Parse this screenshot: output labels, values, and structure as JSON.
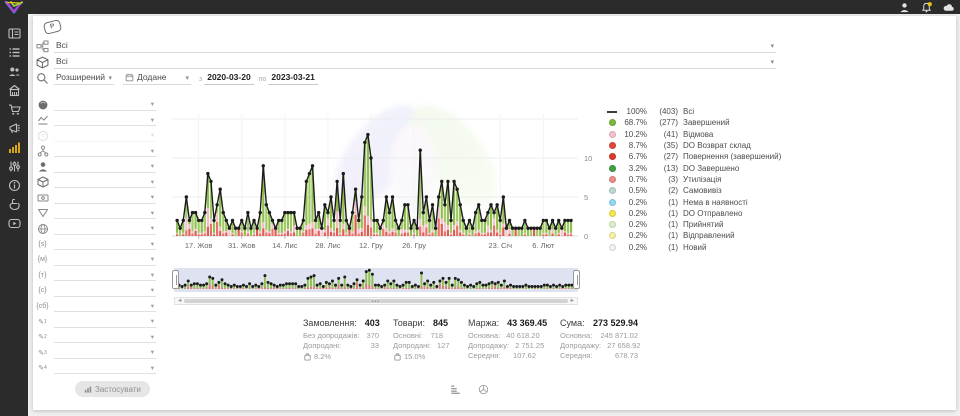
{
  "topbar": {
    "icons": [
      {
        "name": "user-icon"
      },
      {
        "name": "bell-icon",
        "badge": true,
        "badge_color": "#e8c414"
      },
      {
        "name": "cloud-icon"
      }
    ]
  },
  "sidebar": {
    "active_color": "#e7b416",
    "items": [
      {
        "name": "dashboard-icon"
      },
      {
        "name": "orders-list-icon"
      },
      {
        "name": "clients-icon"
      },
      {
        "name": "store-icon"
      },
      {
        "name": "cart-icon"
      },
      {
        "name": "marketing-icon"
      },
      {
        "name": "statistics-icon",
        "active": true
      },
      {
        "name": "sliders-icon"
      },
      {
        "name": "info-icon"
      },
      {
        "name": "support-icon"
      },
      {
        "name": "video-icon"
      }
    ]
  },
  "filters": {
    "rows": [
      {
        "icon": "category-tree-icon",
        "value": "Всі"
      },
      {
        "icon": "product-box-icon",
        "value": "Всі"
      }
    ],
    "search_mode": "Розширений",
    "date": {
      "field": "Додане",
      "prep_from": "з",
      "from": "2020-03-20",
      "prep_to": "по",
      "to": "2023-03-21"
    }
  },
  "filter_panel": {
    "apply_label": "Застосувати",
    "rows": [
      {
        "icon": "sphere-icon"
      },
      {
        "icon": "status-trend-icon"
      },
      {
        "icon": "help-circle-icon",
        "disabled": true
      },
      {
        "icon": "org-tree-icon"
      },
      {
        "icon": "person-icon"
      },
      {
        "icon": "box-icon"
      },
      {
        "icon": "cash-icon"
      },
      {
        "icon": "funnel-icon"
      },
      {
        "icon": "globe-icon"
      },
      {
        "icon": "custom-field-s-icon",
        "glyph": "{s}"
      },
      {
        "icon": "custom-field-m-icon",
        "glyph": "{м}"
      },
      {
        "icon": "custom-field-t-icon",
        "glyph": "{т}"
      },
      {
        "icon": "custom-field-c-icon",
        "glyph": "{с}"
      },
      {
        "icon": "custom-field-cb-icon",
        "glyph": "{сб}"
      },
      {
        "icon": "note-1-icon",
        "glyph": "✎",
        "sub": "1"
      },
      {
        "icon": "note-2-icon",
        "glyph": "✎",
        "sub": "2"
      },
      {
        "icon": "note-3-icon",
        "glyph": "✎",
        "sub": "3"
      },
      {
        "icon": "note-4-icon",
        "glyph": "✎",
        "sub": "4"
      }
    ]
  },
  "legend": {
    "items": [
      {
        "swatch": "line",
        "color": "#3c3c3c",
        "pct": "100%",
        "count": "(403)",
        "label": "Всі"
      },
      {
        "swatch": "dot",
        "color": "#79b93c",
        "pct": "68.7%",
        "count": "(277)",
        "label": "Завершений"
      },
      {
        "swatch": "dot",
        "color": "#f5c2cc",
        "pct": "10.2%",
        "count": "(41)",
        "label": "Відмова"
      },
      {
        "swatch": "dot",
        "color": "#e1493c",
        "pct": "8.7%",
        "count": "(35)",
        "label": "DO Возврат склад"
      },
      {
        "swatch": "dot",
        "color": "#dd392e",
        "pct": "6.7%",
        "count": "(27)",
        "label": "Повернення (завершений)"
      },
      {
        "swatch": "dot",
        "color": "#43a047",
        "pct": "3.2%",
        "count": "(13)",
        "label": "DO Завершено"
      },
      {
        "swatch": "dot",
        "color": "#ee8d86",
        "pct": "0.7%",
        "count": "(3)",
        "label": "Утилізація"
      },
      {
        "swatch": "dot",
        "color": "#bcd8d4",
        "pct": "0.5%",
        "count": "(2)",
        "label": "Самовивіз"
      },
      {
        "swatch": "dot",
        "color": "#90d9f3",
        "pct": "0.2%",
        "count": "(1)",
        "label": "Нема в наявності"
      },
      {
        "swatch": "dot",
        "color": "#f3e54b",
        "pct": "0.2%",
        "count": "(1)",
        "label": "DO Отправлено"
      },
      {
        "swatch": "dot",
        "color": "#dcedc8",
        "pct": "0.2%",
        "count": "(1)",
        "label": "Прийнятий"
      },
      {
        "swatch": "dot",
        "color": "#f6f0a3",
        "pct": "0.2%",
        "count": "(1)",
        "label": "Відправлений"
      },
      {
        "swatch": "dot",
        "color": "#f1f1f1",
        "pct": "0.2%",
        "count": "(1)",
        "label": "Новий"
      }
    ]
  },
  "chart_data": {
    "type": "bar",
    "subtype": "stacked daily bars with total line overlay and range-selector minimap",
    "title": "",
    "xlabel": "",
    "ylabel": "",
    "y_ticks": [
      0,
      5,
      10
    ],
    "ylim": [
      0,
      15
    ],
    "grid": true,
    "legend_position": "right",
    "x_ticks": [
      {
        "index": 7,
        "label": "17. Жов"
      },
      {
        "index": 21,
        "label": "31. Жов"
      },
      {
        "index": 35,
        "label": "14. Лис"
      },
      {
        "index": 49,
        "label": "28. Лис"
      },
      {
        "index": 63,
        "label": "12. Гру"
      },
      {
        "index": 77,
        "label": "26. Гру"
      },
      {
        "index": 105,
        "label": "23. Січ"
      },
      {
        "index": 119,
        "label": "6. Лют"
      }
    ],
    "line_series": {
      "name": "Всі",
      "color": "#1c1c1c",
      "total": 403,
      "values": [
        2,
        1,
        2,
        5,
        2,
        3,
        3,
        2,
        2,
        3,
        8,
        7,
        2,
        4,
        6,
        3,
        2,
        1,
        2,
        1,
        1,
        2,
        1,
        3,
        1,
        2,
        1,
        3,
        9,
        4,
        3,
        2,
        1,
        2,
        2,
        3,
        3,
        3,
        3,
        1,
        1,
        2,
        7,
        8,
        9,
        2,
        3,
        1,
        4,
        3,
        5,
        2,
        7,
        2,
        8,
        2,
        1,
        3,
        6,
        2,
        5,
        12,
        13,
        10,
        2,
        2,
        1,
        2,
        5,
        3,
        5,
        2,
        1,
        2,
        4,
        4,
        1,
        2,
        1,
        11,
        3,
        5,
        2,
        4,
        1,
        5,
        7,
        4,
        7,
        2,
        7,
        6,
        4,
        2,
        1,
        2,
        1,
        3,
        4,
        2,
        2,
        3,
        4,
        3,
        4,
        2,
        5,
        1,
        2,
        1,
        1,
        1,
        1,
        2,
        1,
        1,
        1,
        1,
        1,
        2,
        2,
        1,
        2,
        1,
        2,
        1,
        2,
        2,
        2
      ]
    },
    "bar_colors": {
      "green": "#8fbf4d",
      "red": "#e05c52",
      "pink": "#f2bcc6"
    },
    "bar_split_fractions": {
      "green": 0.68,
      "red": 0.18,
      "pink": 0.14
    },
    "minimap": {
      "background": "#dfe3f1",
      "handles": 2,
      "scrollbar": true
    }
  },
  "stats": {
    "columns": [
      {
        "title": "Замовлення:",
        "value": "403",
        "rows": [
          {
            "label": "Без допродажів:",
            "value": "370"
          },
          {
            "label": "Допродані:",
            "value": "33"
          }
        ],
        "bag_pct": "8.2%"
      },
      {
        "title": "Товари:",
        "value": "845",
        "rows": [
          {
            "label": "Основні:",
            "value": "718"
          },
          {
            "label": "Допродані:",
            "value": "127"
          }
        ],
        "bag_pct": "15.0%"
      },
      {
        "title": "Маржа:",
        "value": "43 369.45",
        "rows": [
          {
            "label": "Основна:",
            "value": "40 618.20"
          },
          {
            "label": "Допродажу:",
            "value": "2 751.25"
          },
          {
            "label": "Середня:",
            "value": "107.62"
          }
        ]
      },
      {
        "title": "Сума:",
        "value": "273 529.94",
        "rows": [
          {
            "label": "Основна:",
            "value": "245 871.02"
          },
          {
            "label": "Допродажу:",
            "value": "27 658.92"
          },
          {
            "label": "Середня:",
            "value": "678.73"
          }
        ]
      }
    ]
  },
  "footer": {
    "icons": [
      {
        "name": "list-view-icon"
      },
      {
        "name": "box-view-icon"
      }
    ]
  }
}
